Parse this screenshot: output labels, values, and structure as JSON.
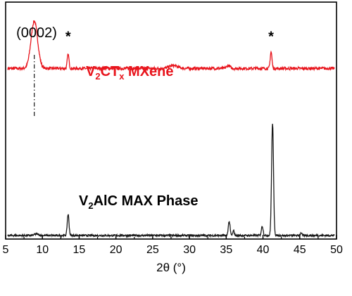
{
  "chart_data": {
    "type": "line",
    "xlabel": "2θ (°)",
    "xlim": [
      5,
      50
    ],
    "xticks": [
      5,
      10,
      15,
      20,
      25,
      30,
      35,
      40,
      45,
      50
    ],
    "ylabel": "",
    "grid": false,
    "series": [
      {
        "name": "V2CTx MXene",
        "label_main": "V",
        "label_sub1": "2",
        "label_mid": "CT",
        "label_sub2": "x",
        "label_end": " MXene",
        "color": "#e8141c",
        "baseline": 0.72,
        "noise": 0.006,
        "peaks": [
          {
            "x": 8.9,
            "h": 0.2,
            "w": 0.45
          },
          {
            "x": 13.5,
            "h": 0.06,
            "w": 0.12
          },
          {
            "x": 27.8,
            "h": 0.012,
            "w": 0.6
          },
          {
            "x": 35.3,
            "h": 0.012,
            "w": 0.25
          },
          {
            "x": 41.1,
            "h": 0.07,
            "w": 0.12
          }
        ],
        "markers": [
          {
            "x": 13.5,
            "text": "*"
          },
          {
            "x": 41.1,
            "text": "*"
          }
        ]
      },
      {
        "name": "V2AlC MAX Phase",
        "label_main": "V",
        "label_sub1": "2",
        "label_mid": "AlC MAX Phase",
        "color": "#1a1a1a",
        "baseline": 0.015,
        "noise": 0.004,
        "peaks": [
          {
            "x": 9.2,
            "h": 0.006,
            "w": 0.3
          },
          {
            "x": 13.5,
            "h": 0.09,
            "w": 0.12
          },
          {
            "x": 35.4,
            "h": 0.06,
            "w": 0.12
          },
          {
            "x": 36.0,
            "h": 0.02,
            "w": 0.1
          },
          {
            "x": 39.9,
            "h": 0.04,
            "w": 0.12
          },
          {
            "x": 41.3,
            "h": 0.475,
            "w": 0.13
          },
          {
            "x": 45.2,
            "h": 0.012,
            "w": 0.1
          }
        ]
      }
    ],
    "annotations": [
      {
        "text": "(0002)",
        "x": 8.9,
        "type": "dashdot-vertical-line"
      }
    ]
  }
}
